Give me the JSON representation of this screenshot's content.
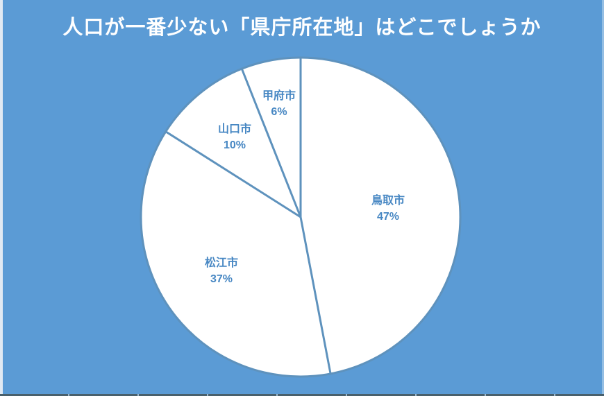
{
  "page": {
    "background_color": "#5b9bd5",
    "title_color": "#ffffff",
    "bottom_line_color": "#49606c",
    "edge_strip_color": "#eef2f6"
  },
  "chart_data": {
    "type": "pie",
    "title": "人口が一番少ない「県庁所在地」はどこでしょうか",
    "categories": [
      "鳥取市",
      "松江市",
      "山口市",
      "甲府市"
    ],
    "values": [
      47,
      37,
      10,
      6
    ],
    "unit": "%",
    "data_labels": [
      "鳥取市 47%",
      "松江市 37%",
      "山口市 10%",
      "甲府市 6%"
    ],
    "start_angle_deg": 0,
    "direction": "clockwise",
    "slice_fill_color": "#ffffff",
    "slice_border_color": "#5e92bd",
    "label_text_color": "#4787c3",
    "legend_position": "none",
    "label_radius_factors": [
      0.55,
      0.6,
      0.65,
      0.72
    ]
  }
}
